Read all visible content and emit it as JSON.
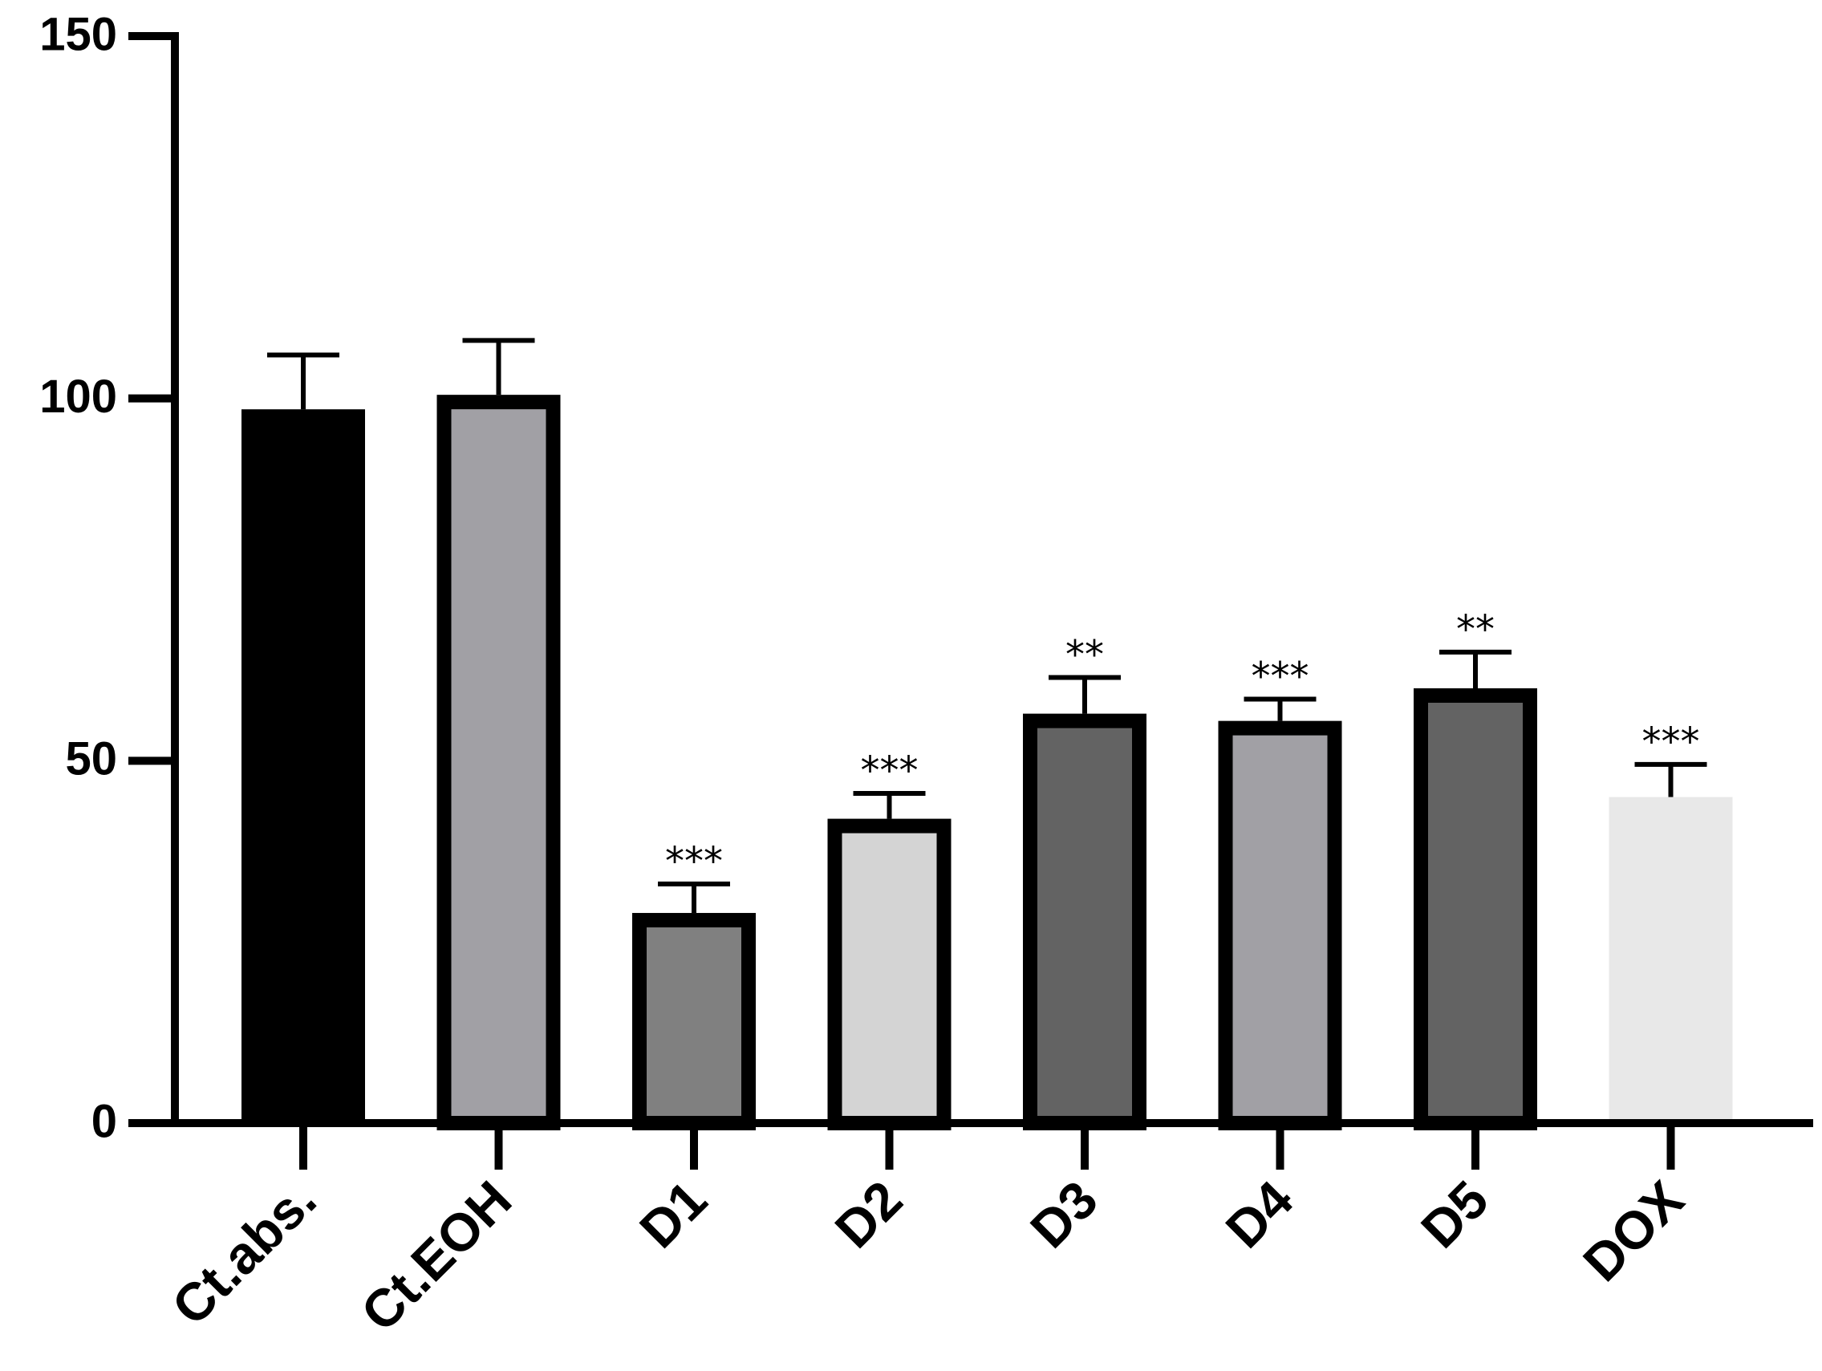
{
  "chart_data": {
    "type": "bar",
    "title": "",
    "xlabel": "",
    "ylabel": "",
    "ylim": [
      0,
      150
    ],
    "yticks": [
      0,
      50,
      100,
      150
    ],
    "grid": false,
    "legend": "none",
    "categories": [
      "Ct.abs.",
      "Ct.EOH",
      "D1",
      "D2",
      "D3",
      "D4",
      "D5",
      "DOX"
    ],
    "values": [
      98.5,
      100.5,
      29,
      42,
      56.5,
      55.5,
      60,
      45
    ],
    "errors": [
      7.5,
      7.5,
      4,
      3.5,
      5,
      3,
      5,
      4.5
    ],
    "significance": [
      "",
      "",
      "***",
      "***",
      "**",
      "***",
      "**",
      "***"
    ],
    "colors": {
      "fills": [
        "#000000",
        "#a1a0a5",
        "#808080",
        "#d4d4d4",
        "#636363",
        "#a1a0a5",
        "#636363",
        "#e8e8e8"
      ],
      "outlined": [
        false,
        true,
        true,
        true,
        true,
        true,
        true,
        false
      ],
      "outline": "#000000"
    }
  }
}
